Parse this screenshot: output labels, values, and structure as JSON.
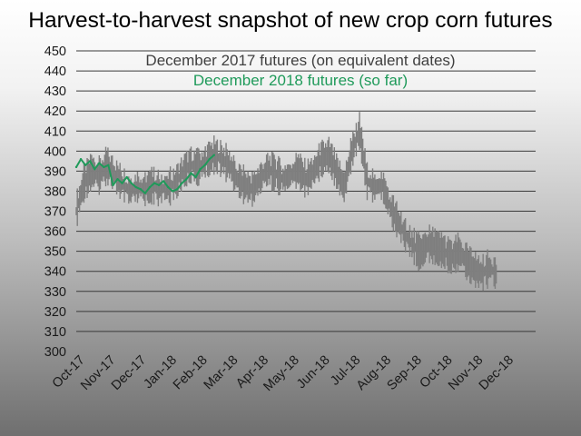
{
  "chart_data": {
    "type": "line",
    "title": "Harvest-to-harvest snapshot of new crop corn futures",
    "xlabel": "",
    "ylabel": "",
    "ylim": [
      300,
      450
    ],
    "yticks": [
      300,
      310,
      320,
      330,
      340,
      350,
      360,
      370,
      380,
      390,
      400,
      410,
      420,
      430,
      440,
      450
    ],
    "categories": [
      "Oct-17",
      "Nov-17",
      "Dec-17",
      "Jan-18",
      "Feb-18",
      "Mar-18",
      "Apr-18",
      "May-18",
      "Jun-18",
      "Jul-18",
      "Aug-18",
      "Sep-18",
      "Oct-18",
      "Nov-18",
      "Dec-18"
    ],
    "grid": true,
    "legend_placement": "top-center",
    "series": [
      {
        "name": "December 2017 futures (on equivalent dates)",
        "color": "#7f7f7f",
        "style": "high-low bars",
        "x": [
          0,
          0.25,
          0.5,
          0.75,
          1,
          1.25,
          1.5,
          1.75,
          2,
          2.25,
          2.5,
          2.75,
          3,
          3.25,
          3.5,
          3.75,
          4,
          4.25,
          4.5,
          4.75,
          5,
          5.25,
          5.5,
          5.75,
          6,
          6.25,
          6.5,
          6.75,
          7,
          7.25,
          7.5,
          7.75,
          8,
          8.25,
          8.5,
          8.75,
          9,
          9.25,
          9.5,
          9.75,
          10,
          10.25,
          10.5,
          10.75,
          11,
          11.25,
          11.5,
          11.75,
          12,
          12.25,
          12.5,
          12.75,
          13,
          13.25,
          13.5,
          13.75
        ],
        "values": [
          370,
          384,
          390,
          388,
          393,
          388,
          384,
          380,
          382,
          381,
          383,
          381,
          382,
          384,
          390,
          393,
          392,
          395,
          398,
          396,
          393,
          386,
          383,
          381,
          386,
          391,
          389,
          386,
          388,
          391,
          386,
          390,
          396,
          398,
          390,
          382,
          400,
          410,
          385,
          382,
          383,
          372,
          365,
          358,
          353,
          349,
          354,
          352,
          350,
          347,
          350,
          345,
          341,
          339,
          342,
          338
        ]
      },
      {
        "name": "December 2018 futures (so far)",
        "color": "#1f9a5a",
        "style": "line",
        "x": [
          0,
          0.15,
          0.3,
          0.45,
          0.6,
          0.75,
          0.9,
          1.05,
          1.2,
          1.35,
          1.5,
          1.65,
          1.8,
          1.95,
          2.1,
          2.25,
          2.4,
          2.55,
          2.7,
          2.85,
          3,
          3.15,
          3.3,
          3.45,
          3.6,
          3.75,
          3.9,
          4.05,
          4.2,
          4.35,
          4.5
        ],
        "values": [
          392,
          396,
          393,
          395,
          391,
          394,
          392,
          393,
          383,
          386,
          384,
          387,
          384,
          382,
          381,
          379,
          382,
          384,
          383,
          385,
          382,
          380,
          381,
          384,
          386,
          389,
          387,
          391,
          393,
          396,
          398
        ]
      }
    ]
  }
}
